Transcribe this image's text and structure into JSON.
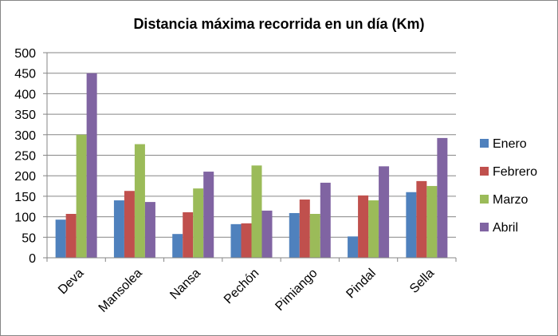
{
  "chart_data": {
    "type": "bar",
    "title": "Distancia máxima recorrida en un día (Km)",
    "xlabel": "",
    "ylabel": "",
    "ylim": [
      0,
      500
    ],
    "yticks": [
      "0",
      "50",
      "100",
      "150",
      "200",
      "250",
      "300",
      "350",
      "400",
      "450",
      "500"
    ],
    "grid": true,
    "legend_position": "right",
    "categories": [
      "Deva",
      "Mansolea",
      "Nansa",
      "Pechón",
      "Pimiango",
      "Pindal",
      "Sella"
    ],
    "series": [
      {
        "name": "Enero",
        "color": "#4F81BD",
        "values": [
          93,
          140,
          58,
          82,
          109,
          52,
          160
        ]
      },
      {
        "name": "Febrero",
        "color": "#C0504D",
        "values": [
          107,
          163,
          111,
          84,
          142,
          152,
          187
        ]
      },
      {
        "name": "Marzo",
        "color": "#9BBB59",
        "values": [
          300,
          277,
          169,
          225,
          107,
          140,
          175
        ]
      },
      {
        "name": "Abril",
        "color": "#8064A2",
        "values": [
          450,
          136,
          210,
          115,
          183,
          223,
          292
        ]
      }
    ]
  }
}
